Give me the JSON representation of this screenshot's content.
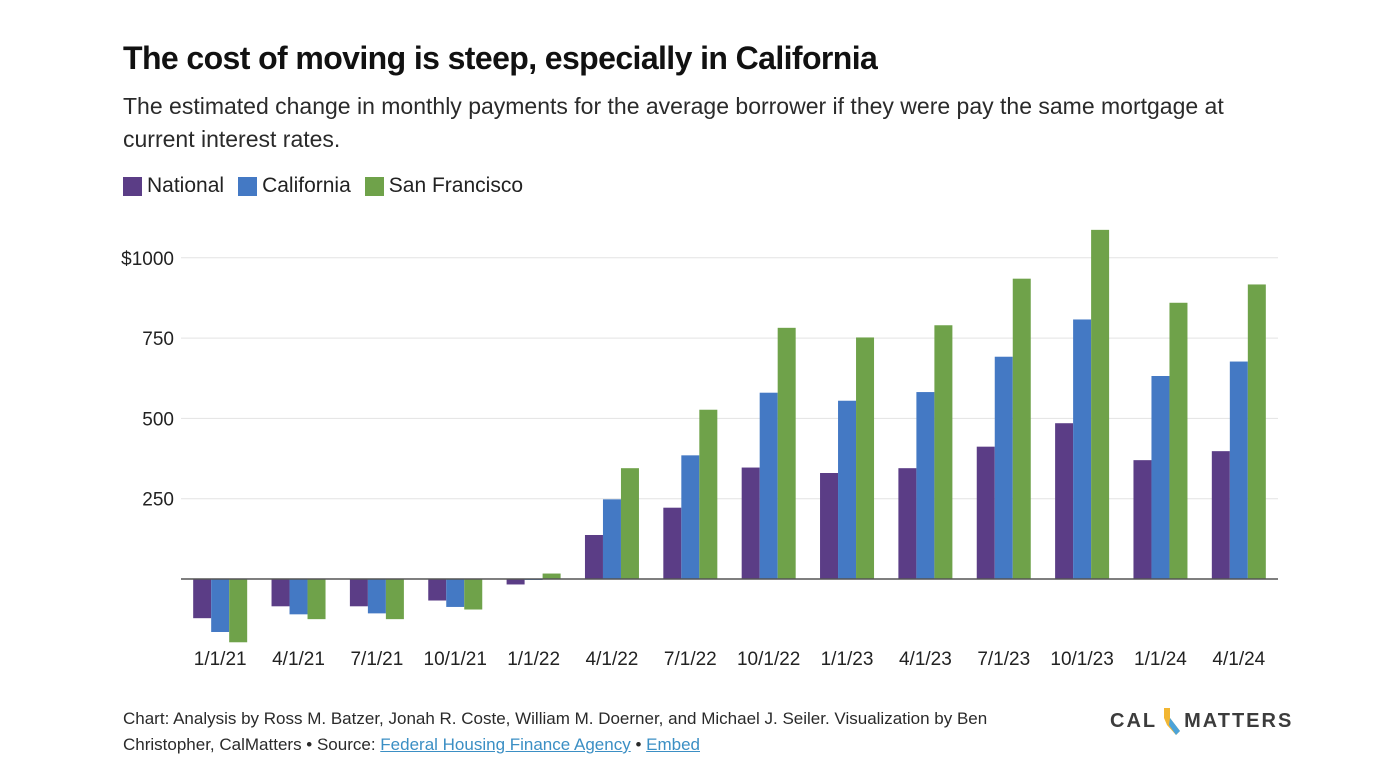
{
  "title": "The cost of moving is steep, especially in California",
  "subtitle": "The estimated change in monthly payments for the average borrower if they were pay the same mortgage at current interest rates.",
  "legend": [
    {
      "label": "National",
      "color": "#5b3d86"
    },
    {
      "label": "California",
      "color": "#4479c4"
    },
    {
      "label": "San Francisco",
      "color": "#6fa24a"
    }
  ],
  "chart_data": {
    "type": "bar",
    "categories": [
      "1/1/21",
      "4/1/21",
      "7/1/21",
      "10/1/21",
      "1/1/22",
      "4/1/22",
      "7/1/22",
      "10/1/22",
      "1/1/23",
      "4/1/23",
      "7/1/23",
      "10/1/23",
      "1/1/24",
      "4/1/24"
    ],
    "series": [
      {
        "name": "National",
        "color": "#5b3d86",
        "values": [
          -122,
          -85,
          -85,
          -67,
          -17,
          137,
          222,
          347,
          330,
          345,
          412,
          485,
          370,
          398
        ]
      },
      {
        "name": "California",
        "color": "#4479c4",
        "values": [
          -165,
          -110,
          -107,
          -87,
          -3,
          248,
          385,
          580,
          555,
          582,
          692,
          808,
          632,
          677
        ]
      },
      {
        "name": "San Francisco",
        "color": "#6fa24a",
        "values": [
          -197,
          -125,
          -125,
          -95,
          17,
          345,
          527,
          782,
          752,
          790,
          935,
          1087,
          860,
          917
        ]
      }
    ],
    "yticks": [
      {
        "value": 250,
        "label": "250"
      },
      {
        "value": 500,
        "label": "500"
      },
      {
        "value": 750,
        "label": "750"
      },
      {
        "value": 1000,
        "label": "$1000"
      }
    ],
    "ylim": [
      -200,
      1100
    ],
    "grid": true,
    "legend_position": "top-left"
  },
  "footer": {
    "credit": "Chart: Analysis by Ross M. Batzer, Jonah R. Coste, William M. Doerner, and Michael J. Seiler. Visualization by Ben Christopher, CalMatters • Source: ",
    "source_link": "Federal Housing Finance Agency",
    "separator": " • ",
    "embed_link": "Embed"
  },
  "logo": {
    "left": "CAL",
    "right": "MATTERS"
  }
}
